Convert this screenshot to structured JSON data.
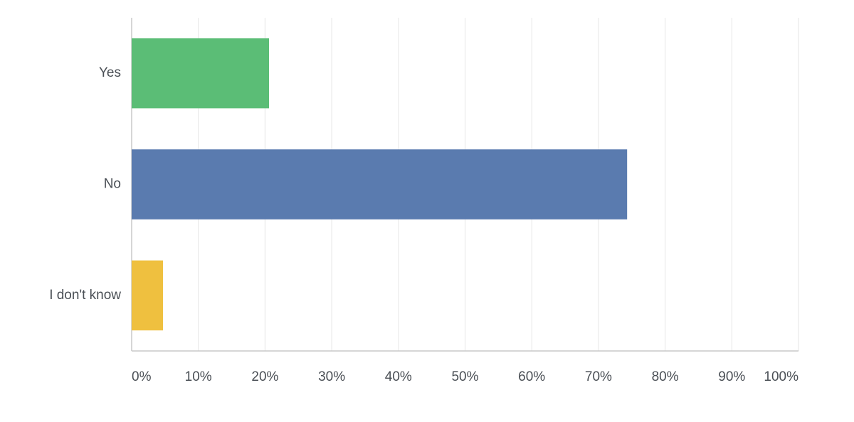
{
  "chart_data": {
    "type": "bar",
    "orientation": "horizontal",
    "categories": [
      "Yes",
      "No",
      "I don't know"
    ],
    "values": [
      20.6,
      74.3,
      4.7
    ],
    "colors": [
      "#5bbd76",
      "#5a7baf",
      "#efc03f"
    ],
    "xlim": [
      0,
      100
    ],
    "xticks": [
      {
        "value": 0,
        "label": "0%"
      },
      {
        "value": 10,
        "label": "10%"
      },
      {
        "value": 20,
        "label": "20%"
      },
      {
        "value": 30,
        "label": "30%"
      },
      {
        "value": 40,
        "label": "40%"
      },
      {
        "value": 50,
        "label": "50%"
      },
      {
        "value": 60,
        "label": "60%"
      },
      {
        "value": 70,
        "label": "70%"
      },
      {
        "value": 80,
        "label": "80%"
      },
      {
        "value": 90,
        "label": "90%"
      },
      {
        "value": 100,
        "label": "100%"
      }
    ],
    "grid": true
  }
}
